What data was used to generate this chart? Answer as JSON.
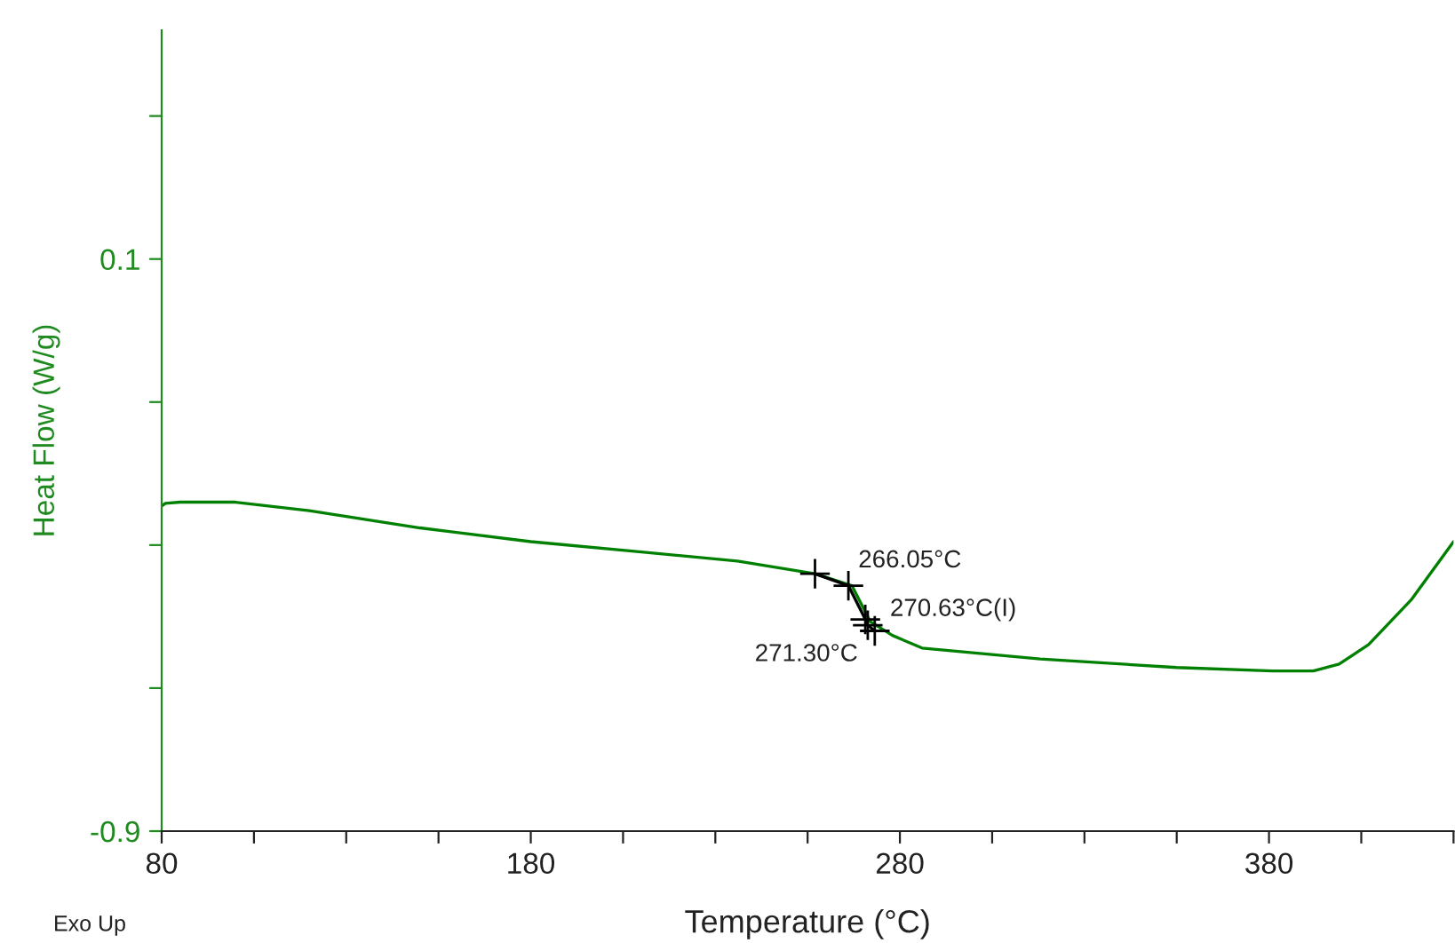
{
  "chart_data": {
    "type": "line",
    "xlabel": "Temperature (°C)",
    "ylabel": "Heat Flow (W/g)",
    "xlim": [
      80,
      430
    ],
    "xticks": [
      80,
      {
        "value": 105,
        "label": null
      },
      {
        "value": 130,
        "label": null
      },
      {
        "value": 155,
        "label": null
      },
      180,
      {
        "value": 205,
        "label": null
      },
      {
        "value": 230,
        "label": null
      },
      {
        "value": 255,
        "label": null
      },
      280,
      {
        "value": 305,
        "label": null
      },
      {
        "value": 330,
        "label": null
      },
      {
        "value": 355,
        "label": null
      },
      380,
      {
        "value": 405,
        "label": null
      },
      {
        "value": 430,
        "label": null
      }
    ],
    "ylim": [
      -0.9,
      0.5
    ],
    "yticks": [
      -0.9,
      {
        "value": -0.65,
        "label": null
      },
      {
        "value": -0.4,
        "label": null
      },
      {
        "value": -0.15,
        "label": null
      },
      0.1,
      {
        "value": 0.35,
        "label": null
      }
    ],
    "grid": false,
    "series": [
      {
        "color": "#008000",
        "x": [
          80,
          81,
          85,
          100,
          120,
          150,
          180,
          210,
          236,
          257,
          267,
          272,
          278,
          286,
          318,
          355,
          381,
          392,
          399,
          407,
          418.5,
          430
        ],
        "values": [
          -0.332,
          -0.327,
          -0.325,
          -0.325,
          -0.34,
          -0.37,
          -0.394,
          -0.412,
          -0.428,
          -0.45,
          -0.471,
          -0.534,
          -0.558,
          -0.58,
          -0.599,
          -0.614,
          -0.62,
          -0.62,
          -0.608,
          -0.574,
          -0.496,
          -0.394
        ],
        "marker": "none"
      },
      {
        "color": "#000000",
        "x": [
          257,
          266.05,
          270.63,
          271.3,
          273.2
        ],
        "values": [
          -0.45,
          -0.471,
          -0.53,
          -0.54,
          -0.55
        ],
        "marker": "cross"
      }
    ],
    "annotations": [
      {
        "text": "266.05°C",
        "x": 266.05,
        "y": -0.471
      },
      {
        "text": "270.63°C(I)",
        "x": 270.63,
        "y": -0.53
      },
      {
        "text": "271.30°C",
        "x": 271.3,
        "y": -0.54
      },
      "Exo Up"
    ]
  }
}
